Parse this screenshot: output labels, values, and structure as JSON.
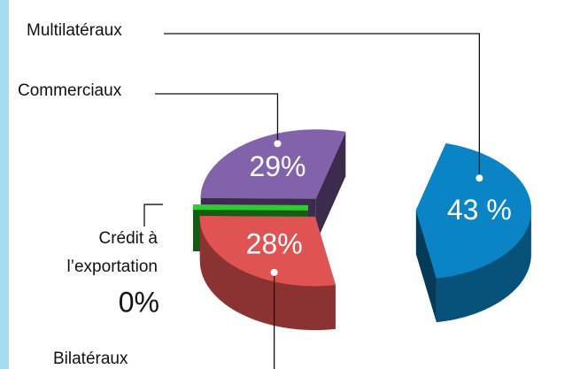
{
  "chart_data": {
    "type": "pie",
    "categories": [
      "Multilatéraux",
      "Bilatéraux",
      "Crédit à l’exportation",
      "Commerciaux"
    ],
    "values": [
      43,
      28,
      0,
      29
    ],
    "value_labels": [
      "43 %",
      "28%",
      "0%",
      "29%"
    ],
    "colors": [
      "#0a84c4",
      "#e05353",
      "#2ecc2e",
      "#8262ab"
    ]
  }
}
